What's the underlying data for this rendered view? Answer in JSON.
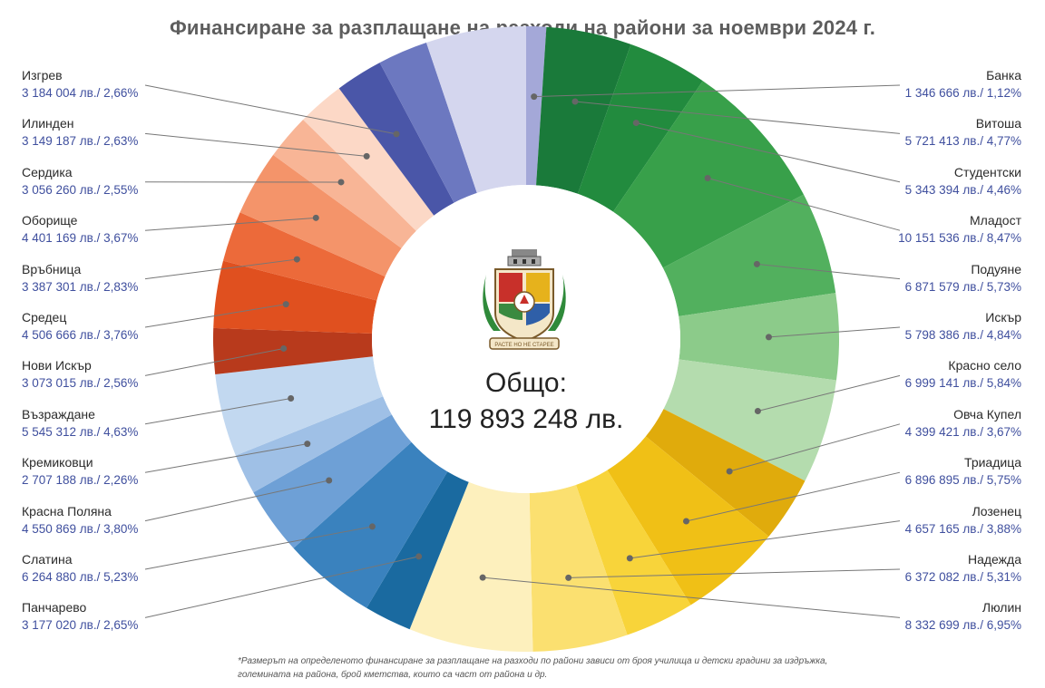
{
  "chart_data": {
    "type": "pie",
    "title": "Финансиране за разплащане на разходи на райони за ноември  2024 г.",
    "total_label": "Общо:",
    "total_value": "119 893 248 лв.",
    "footnote": "*Размерът на определеното финансиране за разплащане на разходи по райони зависи от броя училища и детски градини за издръжка, големината на района, брой кметства, които са част от района и др.",
    "slices": [
      {
        "name": "Банка",
        "amount": 1346666,
        "label": "1 346 666 лв./ 1,12%",
        "percent": 1.12,
        "color": "#a4a8d8",
        "side": "right"
      },
      {
        "name": "Витоша",
        "amount": 5721413,
        "label": "5 721 413 лв./ 4,77%",
        "percent": 4.77,
        "color": "#1a7a3a",
        "side": "right"
      },
      {
        "name": "Студентски",
        "amount": 5343394,
        "label": "5 343 394 лв./ 4,46%",
        "percent": 4.46,
        "color": "#228b3e",
        "side": "right"
      },
      {
        "name": "Младост",
        "amount": 10151536,
        "label": "10 151 536 лв./ 8,47%",
        "percent": 8.47,
        "color": "#38a04a",
        "side": "right"
      },
      {
        "name": "Подуяне",
        "amount": 6871579,
        "label": "6 871 579 лв./ 5,73%",
        "percent": 5.73,
        "color": "#52b05e",
        "side": "right"
      },
      {
        "name": "Искър",
        "amount": 5798386,
        "label": "5 798 386 лв./ 4,84%",
        "percent": 4.84,
        "color": "#8ccb8a",
        "side": "right"
      },
      {
        "name": "Красно село",
        "amount": 6999141,
        "label": "6 999 141 лв./ 5,84%",
        "percent": 5.84,
        "color": "#b4dcae",
        "side": "right"
      },
      {
        "name": "Овча Купел",
        "amount": 4399421,
        "label": "4 399 421 лв./ 3,67%",
        "percent": 3.67,
        "color": "#e0ab0c",
        "side": "right"
      },
      {
        "name": "Триадица",
        "amount": 6896895,
        "label": "6 896 895 лв./ 5,75%",
        "percent": 5.75,
        "color": "#f0c016",
        "side": "right"
      },
      {
        "name": "Лозенец",
        "amount": 4657165,
        "label": "4 657 165 лв./ 3,88%",
        "percent": 3.88,
        "color": "#f8d43a",
        "side": "right"
      },
      {
        "name": "Надежда",
        "amount": 6372082,
        "label": "6 372 082 лв./ 5,31%",
        "percent": 5.31,
        "color": "#fbe070",
        "side": "right"
      },
      {
        "name": "Люлин",
        "amount": 8332699,
        "label": "8 332 699 лв./ 6,95%",
        "percent": 6.95,
        "color": "#fdf0bd",
        "side": "right"
      },
      {
        "name": "Панчарево",
        "amount": 3177020,
        "label": "3 177 020 лв./ 2,65%",
        "percent": 2.65,
        "color": "#1a6aa0",
        "side": "left"
      },
      {
        "name": "Слатина",
        "amount": 6264880,
        "label": "6 264 880 лв./ 5,23%",
        "percent": 5.23,
        "color": "#3a82be",
        "side": "left"
      },
      {
        "name": "Красна Поляна",
        "amount": 4550869,
        "label": "4 550 869 лв./ 3,80%",
        "percent": 3.8,
        "color": "#6ea0d6",
        "side": "left"
      },
      {
        "name": "Кремиковци",
        "amount": 2707188,
        "label": "2 707 188 лв./ 2,26%",
        "percent": 2.26,
        "color": "#9fc0e6",
        "side": "left"
      },
      {
        "name": "Възраждане",
        "amount": 5545312,
        "label": "5 545 312 лв./ 4,63%",
        "percent": 4.63,
        "color": "#c2d8f0",
        "side": "left"
      },
      {
        "name": "Нови Искър",
        "amount": 3073015,
        "label": "3 073 015 лв./ 2,56%",
        "percent": 2.56,
        "color": "#b83a1c",
        "side": "left"
      },
      {
        "name": "Средец",
        "amount": 4506666,
        "label": "4 506 666 лв./ 3,76%",
        "percent": 3.76,
        "color": "#e0501f",
        "side": "left"
      },
      {
        "name": "Връбница",
        "amount": 3387301,
        "label": "3 387 301 лв./ 2,83%",
        "percent": 2.83,
        "color": "#ec6a3a",
        "side": "left"
      },
      {
        "name": "Оборище",
        "amount": 4401169,
        "label": "4 401 169 лв./ 3,67%",
        "percent": 3.67,
        "color": "#f4946a",
        "side": "left"
      },
      {
        "name": "Сердика",
        "amount": 3056260,
        "label": "3 056 260 лв./ 2,55%",
        "percent": 2.55,
        "color": "#f8b596",
        "side": "left"
      },
      {
        "name": "Илинден",
        "amount": 3149187,
        "label": "3 149 187 лв./ 2,63%",
        "percent": 2.63,
        "color": "#fcd8c6",
        "side": "left"
      },
      {
        "name": "Изгрев",
        "amount": 3184004,
        "label": "3 184 004 лв./ 2,66%",
        "percent": 2.66,
        "color": "#4a56a8",
        "side": "left"
      },
      {
        "name": "",
        "amount": 0,
        "label": "",
        "percent": 2.8,
        "color": "#6c78c0",
        "side": "none"
      },
      {
        "name": "",
        "amount": 0,
        "label": "",
        "percent": 5.6,
        "color": "#d4d6ee",
        "side": "none"
      }
    ]
  },
  "crest": {
    "motto": "РАСТЕ НО НЕ СТАРЕЕ",
    "icon": "sofia-coat-of-arms-icon"
  }
}
